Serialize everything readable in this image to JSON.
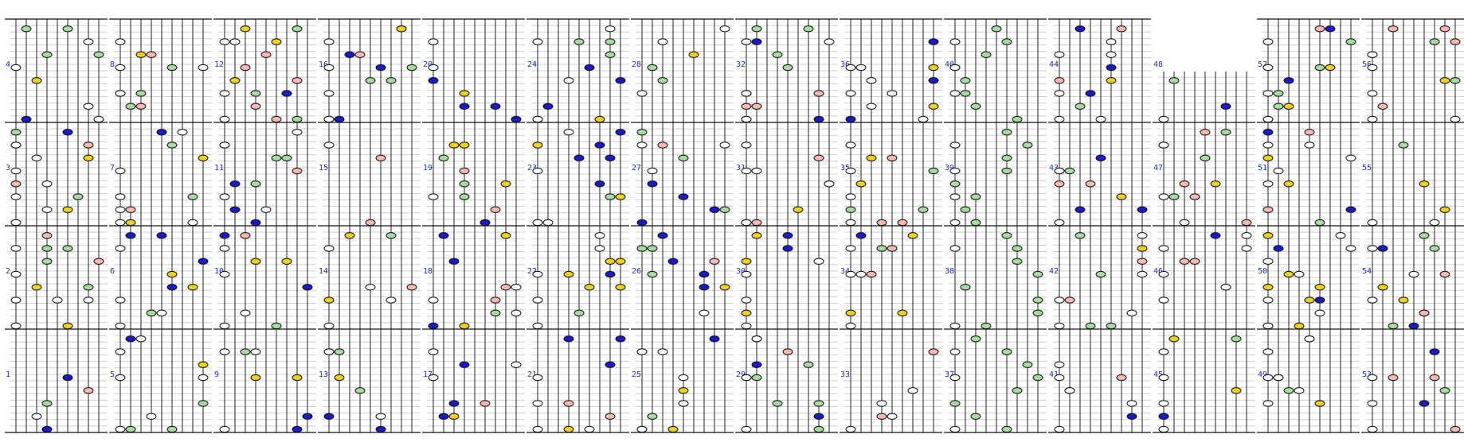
{
  "strips": [
    {
      "measures": [
        "1",
        "2",
        "3",
        "4"
      ]
    },
    {
      "measures": [
        "5",
        "6",
        "7",
        "8"
      ]
    },
    {
      "measures": [
        "9",
        "10",
        "11",
        "12"
      ]
    },
    {
      "measures": [
        "13",
        "14",
        "15",
        "16"
      ]
    },
    {
      "measures": [
        "17",
        "18",
        "19",
        "20"
      ]
    },
    {
      "measures": [
        "21",
        "22",
        "23",
        "24"
      ]
    },
    {
      "measures": [
        "25",
        "26",
        "27",
        "28"
      ]
    },
    {
      "measures": [
        "29",
        "30",
        "31",
        "32"
      ]
    },
    {
      "measures": [
        "33",
        "34",
        "35",
        "36"
      ]
    },
    {
      "measures": [
        "37",
        "38",
        "39",
        "40"
      ]
    },
    {
      "measures": [
        "41",
        "42",
        "43",
        "44"
      ]
    },
    {
      "measures": [
        "45",
        "46",
        "47",
        "48"
      ]
    },
    {
      "measures": [
        "49",
        "50",
        "51",
        "52"
      ]
    },
    {
      "measures": [
        "53",
        "54",
        "55",
        "56"
      ]
    }
  ]
}
